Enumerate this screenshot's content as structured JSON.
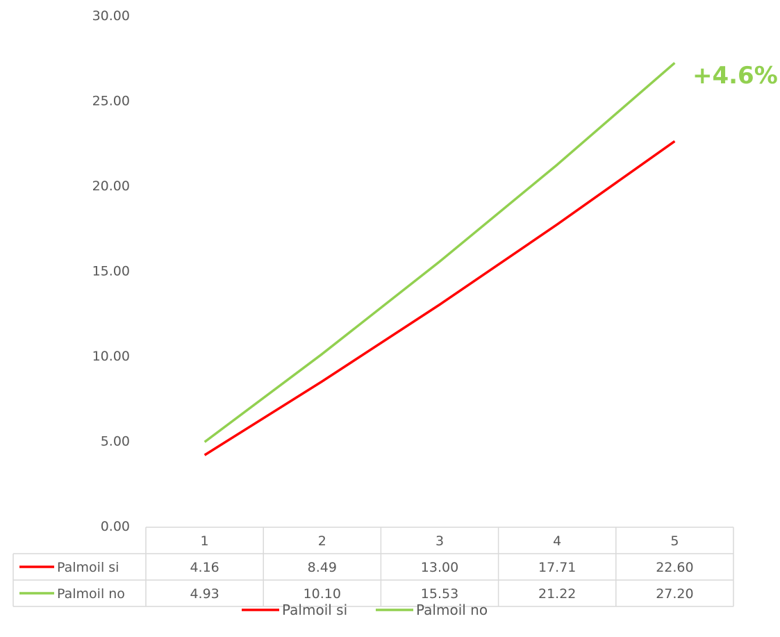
{
  "chart_data": {
    "type": "line",
    "categories": [
      "1",
      "2",
      "3",
      "4",
      "5"
    ],
    "series": [
      {
        "name": "Palmoil si",
        "values": [
          4.16,
          8.49,
          13.0,
          17.71,
          22.6
        ],
        "labels": [
          "4.16",
          "8.49",
          "13.00",
          "17.71",
          "22.60"
        ],
        "color": "#ff0000"
      },
      {
        "name": "Palmoil no",
        "values": [
          4.93,
          10.1,
          15.53,
          21.22,
          27.2
        ],
        "labels": [
          "4.93",
          "10.10",
          "15.53",
          "21.22",
          "27.20"
        ],
        "color": "#92d050"
      }
    ],
    "ylim": [
      0,
      30
    ],
    "yticks": [
      "0.00",
      "5.00",
      "10.00",
      "15.00",
      "20.00",
      "25.00",
      "30.00"
    ],
    "title": "",
    "xlabel": "",
    "ylabel": "",
    "grid": false,
    "data_table": true,
    "legend_position": "bottom",
    "annotations": [
      {
        "text": "+4.6%",
        "color": "#92d050"
      }
    ]
  }
}
